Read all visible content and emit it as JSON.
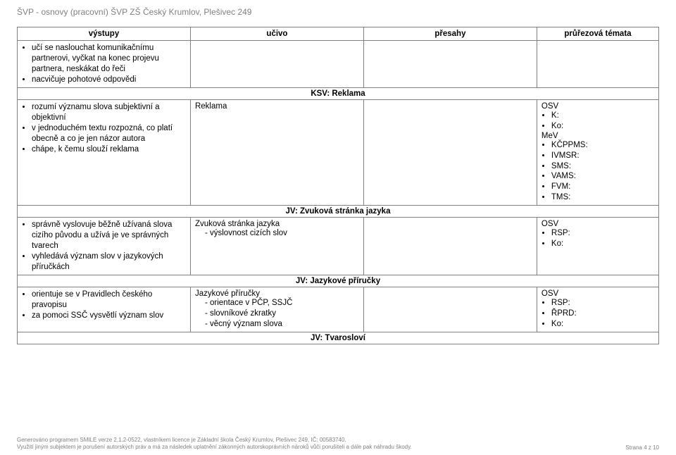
{
  "doc": {
    "header_title": "ŠVP - osnovy (pracovní) ŠVP ZŠ Český Krumlov, Plešivec 249"
  },
  "table": {
    "headers": {
      "outputs": "výstupy",
      "content": "učivo",
      "overlaps": "přesahy",
      "themes": "průřezová témata"
    },
    "row1": {
      "outputs": [
        "učí se naslouchat komunikačnímu partnerovi, vyčkat na konec projevu partnera, neskákat do řeči",
        "nacvičuje pohotové odpovědi"
      ]
    },
    "section1": {
      "label": "KSV: Reklama"
    },
    "row2": {
      "outputs": [
        "rozumí významu slova subjektivní a objektivní",
        "v jednoduchém textu rozpozná, co platí obecně a co je jen názor autora",
        "chápe, k čemu slouží reklama"
      ],
      "content_main": "Reklama",
      "themes": {
        "top": [
          "OSV",
          "K:",
          "Ko:"
        ],
        "mev": "MeV",
        "mev_items": [
          "KČPPMS:",
          "IVMSR:",
          "SMS:",
          "VAMS:",
          "FVM:",
          "TMS:"
        ]
      }
    },
    "section2": {
      "label": "JV: Zvuková stránka jazyka"
    },
    "row3": {
      "outputs": [
        "správně vyslovuje běžně užívaná slova cizího původu a užívá je ve správných tvarech",
        "vyhledává význam slov v jazykových příručkách"
      ],
      "content_main": "Zvuková stránka jazyka",
      "content_sub": "- výslovnost cizích slov",
      "themes": [
        "OSV",
        "RSP:",
        "Ko:"
      ]
    },
    "section3": {
      "label": "JV: Jazykové příručky"
    },
    "row4": {
      "outputs": [
        "orientuje se v Pravidlech českého pravopisu",
        "za pomoci SSČ vysvětlí význam slov"
      ],
      "content_main": "Jazykové příručky",
      "content_subs": [
        "- orientace v PČP, SSJČ",
        "- slovníkové zkratky",
        "- věcný význam slova"
      ],
      "themes": [
        "OSV",
        "RSP:",
        "ŘPRD:",
        "Ko:"
      ]
    },
    "section4": {
      "label": "JV: Tvarosloví"
    }
  },
  "footer": {
    "line1": "Generováno programem SMILE verze 2.1.2-0522, vlastníkem licence je Základní škola Český Krumlov, Plešivec 249, IČ: 00583740.",
    "line2": "Využití jiným subjektem je porušení autorských práv a má za následek uplatnění zákonných autorskoprávních nároků vůči porušiteli a dále pak náhradu škody.",
    "page_label": "Strana 4 z 10"
  }
}
